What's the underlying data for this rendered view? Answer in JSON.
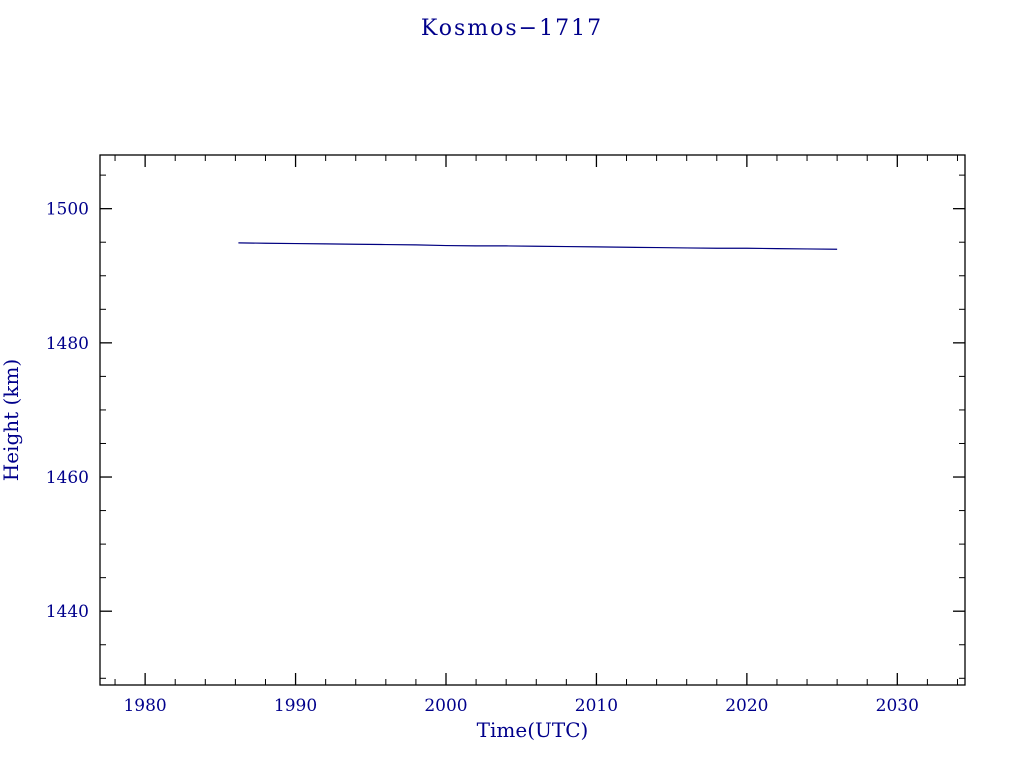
{
  "title": "Kosmos−1717",
  "colors": {
    "text": "#00008B",
    "line": "#000080",
    "axis": "#000000"
  },
  "chart_data": {
    "type": "line",
    "title": "Kosmos−1717",
    "xlabel": "Time(UTC)",
    "ylabel": "Height (km)",
    "xlim": [
      1977.0,
      2034.5
    ],
    "ylim": [
      1429,
      1508
    ],
    "x_ticks": [
      1980,
      1990,
      2000,
      2010,
      2020,
      2030
    ],
    "y_ticks": [
      1440,
      1460,
      1480,
      1500
    ],
    "x_minor_step": 2,
    "y_minor_step": 5,
    "grid": false,
    "legend_position": "none",
    "series": [
      {
        "name": "height",
        "x": [
          1986.2,
          1988,
          1990,
          1992,
          1994,
          1996,
          1998,
          2000,
          2002,
          2004,
          2006,
          2008,
          2010,
          2012,
          2014,
          2016,
          2018,
          2020,
          2022,
          2024,
          2026
        ],
        "y": [
          1494.9,
          1494.85,
          1494.8,
          1494.75,
          1494.7,
          1494.65,
          1494.6,
          1494.5,
          1494.45,
          1494.45,
          1494.4,
          1494.35,
          1494.3,
          1494.25,
          1494.2,
          1494.15,
          1494.1,
          1494.1,
          1494.05,
          1494.0,
          1493.95
        ]
      }
    ]
  }
}
